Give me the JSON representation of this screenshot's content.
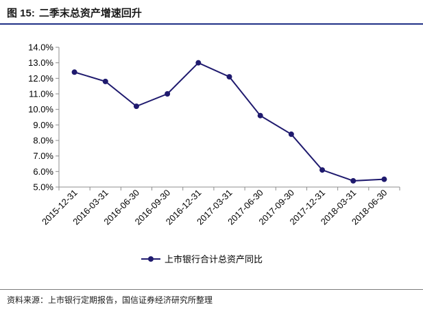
{
  "figure": {
    "number_label": "图 15:",
    "title": "二季末总资产增速回升",
    "source": "资料来源：上市银行定期报告，国信证券经济研究所整理"
  },
  "colors": {
    "series": "#1f1a6e",
    "header_rule": "#1f2f86",
    "axis": "#8c8c8c"
  },
  "chart_data": {
    "type": "line",
    "categories": [
      "2015-12-31",
      "2016-03-31",
      "2016-06-30",
      "2016-09-30",
      "2016-12-31",
      "2017-03-31",
      "2017-06-30",
      "2017-09-30",
      "2017-12-31",
      "2018-03-31",
      "2018-06-30"
    ],
    "series": [
      {
        "name": "上市银行合计总资产同比",
        "values": [
          12.4,
          11.8,
          10.2,
          11.0,
          13.0,
          12.1,
          9.6,
          8.4,
          6.1,
          5.4,
          5.5
        ]
      }
    ],
    "ylim": [
      5.0,
      14.0
    ],
    "yticks": [
      5.0,
      6.0,
      7.0,
      8.0,
      9.0,
      10.0,
      11.0,
      12.0,
      13.0,
      14.0
    ],
    "ytick_labels": [
      "5.0%",
      "6.0%",
      "7.0%",
      "8.0%",
      "9.0%",
      "10.0%",
      "11.0%",
      "12.0%",
      "13.0%",
      "14.0%"
    ],
    "grid": false,
    "legend_position": "bottom"
  }
}
